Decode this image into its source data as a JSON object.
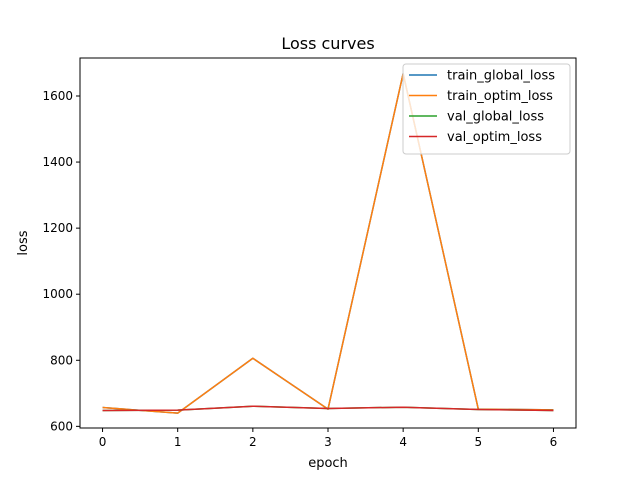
{
  "chart_data": {
    "type": "line",
    "title": "Loss curves",
    "xlabel": "epoch",
    "ylabel": "loss",
    "x": [
      0,
      1,
      2,
      3,
      4,
      5,
      6
    ],
    "xlim": [
      -0.3,
      6.3
    ],
    "ylim": [
      595,
      1715
    ],
    "xticks": [
      0,
      1,
      2,
      3,
      4,
      5,
      6
    ],
    "yticks": [
      600,
      800,
      1000,
      1200,
      1400,
      1600
    ],
    "grid": false,
    "legend_position": "top-right",
    "series": [
      {
        "name": "train_global_loss",
        "color": "#1f77b4",
        "values": [
          657,
          640,
          806,
          652,
          1668,
          652,
          650
        ]
      },
      {
        "name": "train_optim_loss",
        "color": "#ff7f0e",
        "values": [
          657,
          640,
          806,
          652,
          1668,
          652,
          650
        ]
      },
      {
        "name": "val_global_loss",
        "color": "#2ca02c",
        "values": [
          648,
          649,
          661,
          654,
          658,
          651,
          648
        ]
      },
      {
        "name": "val_optim_loss",
        "color": "#d62728",
        "values": [
          648,
          649,
          661,
          654,
          658,
          651,
          648
        ]
      }
    ]
  }
}
